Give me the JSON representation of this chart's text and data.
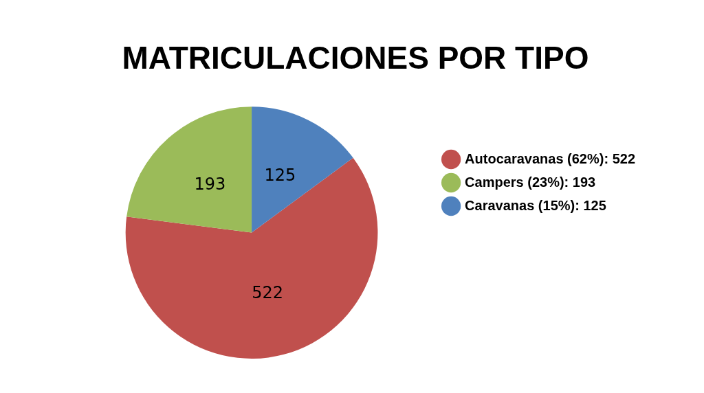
{
  "chart_data": {
    "type": "pie",
    "title": "MATRICULACIONES POR TIPO",
    "categories": [
      "Autocaravanas (62%): 522",
      "Campers (23%): 193",
      "Caravanas (15%): 125"
    ],
    "values": [
      522,
      193,
      125
    ],
    "colors": [
      "#c0504d",
      "#9bbb59",
      "#4f81bd"
    ],
    "data_labels": true,
    "legend": "right"
  }
}
